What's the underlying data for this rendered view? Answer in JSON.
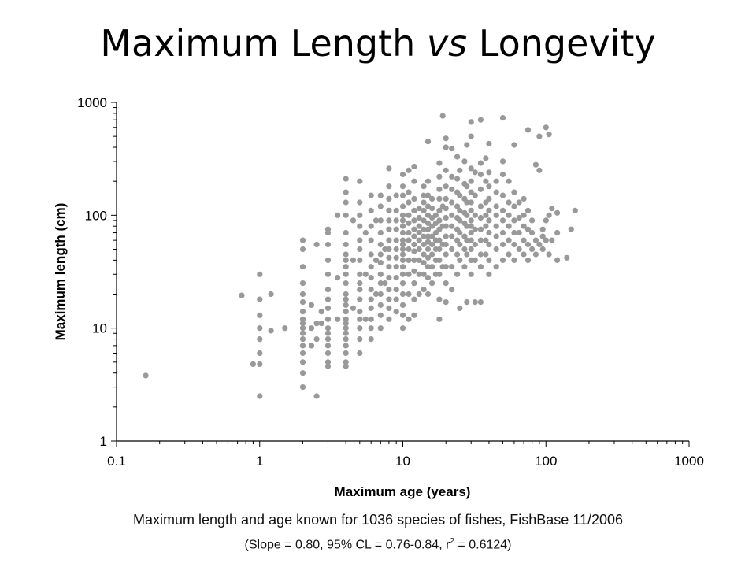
{
  "title": {
    "part1": "Maximum Length ",
    "italic": "vs",
    "part2": " Longevity"
  },
  "caption": {
    "line1": "Maximum length and age known for 1036 species of fishes, FishBase 11/2006",
    "line2_before_sup": "(Slope = 0.80, 95% CL = 0.76-0.84, r",
    "line2_sup": "2",
    "line2_after_sup": " = 0.6124)"
  },
  "chart_data": {
    "type": "scatter",
    "xlabel": "Maximum age (years)",
    "ylabel": "Maximum length (cm)",
    "xscale": "log",
    "yscale": "log",
    "xlim": [
      0.1,
      1000
    ],
    "ylim": [
      1,
      1000
    ],
    "xticks": [
      "0.1",
      "1",
      "10",
      "100",
      "1000"
    ],
    "yticks": [
      "1",
      "10",
      "100",
      "1000"
    ],
    "grid": false,
    "marker_color": "#999999",
    "points": [
      [
        0.16,
        3.8
      ],
      [
        0.75,
        19.5
      ],
      [
        0.9,
        4.8
      ],
      [
        1,
        2.5
      ],
      [
        1,
        4.8
      ],
      [
        1,
        6
      ],
      [
        1,
        8
      ],
      [
        1,
        10
      ],
      [
        1,
        13
      ],
      [
        1,
        18
      ],
      [
        1,
        30
      ],
      [
        1.2,
        9.5
      ],
      [
        1.2,
        20
      ],
      [
        1.5,
        10
      ],
      [
        2,
        3
      ],
      [
        2,
        4
      ],
      [
        2,
        5
      ],
      [
        2,
        6
      ],
      [
        2,
        7
      ],
      [
        2,
        8
      ],
      [
        2,
        9
      ],
      [
        2,
        10
      ],
      [
        2,
        11
      ],
      [
        2,
        12
      ],
      [
        2,
        14
      ],
      [
        2,
        17
      ],
      [
        2,
        20
      ],
      [
        2,
        25
      ],
      [
        2,
        35
      ],
      [
        2,
        50
      ],
      [
        2,
        60
      ],
      [
        2.3,
        7
      ],
      [
        2.3,
        10
      ],
      [
        2.3,
        16
      ],
      [
        2.5,
        2.5
      ],
      [
        2.5,
        55
      ],
      [
        2.5,
        8
      ],
      [
        2.5,
        11
      ],
      [
        2.7,
        11
      ],
      [
        2.7,
        14
      ],
      [
        3,
        4.6
      ],
      [
        3,
        5
      ],
      [
        3,
        6
      ],
      [
        3,
        7
      ],
      [
        3,
        8
      ],
      [
        3,
        9
      ],
      [
        3,
        10
      ],
      [
        3,
        12
      ],
      [
        3,
        15
      ],
      [
        3,
        18
      ],
      [
        3,
        22
      ],
      [
        3,
        30
      ],
      [
        3,
        40
      ],
      [
        3,
        55
      ],
      [
        3,
        70
      ],
      [
        3,
        75
      ],
      [
        3.5,
        12
      ],
      [
        3.5,
        28
      ],
      [
        3.5,
        100
      ],
      [
        4,
        4.6
      ],
      [
        4,
        5
      ],
      [
        4,
        6
      ],
      [
        4,
        7
      ],
      [
        4,
        8
      ],
      [
        4,
        9
      ],
      [
        4,
        10
      ],
      [
        4,
        11
      ],
      [
        4,
        12
      ],
      [
        4,
        14
      ],
      [
        4,
        16
      ],
      [
        4,
        18
      ],
      [
        4,
        20
      ],
      [
        4,
        25
      ],
      [
        4,
        30
      ],
      [
        4,
        35
      ],
      [
        4,
        40
      ],
      [
        4,
        45
      ],
      [
        4,
        55
      ],
      [
        4,
        70
      ],
      [
        4,
        100
      ],
      [
        4,
        130
      ],
      [
        4,
        160
      ],
      [
        4,
        210
      ],
      [
        4.5,
        15
      ],
      [
        4.5,
        40
      ],
      [
        4.5,
        90
      ],
      [
        5,
        6
      ],
      [
        5,
        8
      ],
      [
        5,
        10
      ],
      [
        5,
        12
      ],
      [
        5,
        14
      ],
      [
        5,
        18
      ],
      [
        5,
        22
      ],
      [
        5,
        25
      ],
      [
        5,
        30
      ],
      [
        5,
        40
      ],
      [
        5,
        50
      ],
      [
        5,
        60
      ],
      [
        5,
        80
      ],
      [
        5,
        100
      ],
      [
        5,
        130
      ],
      [
        5,
        200
      ],
      [
        5.5,
        12
      ],
      [
        5.5,
        30
      ],
      [
        5.5,
        70
      ],
      [
        6,
        8
      ],
      [
        6,
        10
      ],
      [
        6,
        12
      ],
      [
        6,
        15
      ],
      [
        6,
        18
      ],
      [
        6,
        22
      ],
      [
        6,
        28
      ],
      [
        6,
        35
      ],
      [
        6,
        45
      ],
      [
        6,
        60
      ],
      [
        6,
        80
      ],
      [
        6,
        110
      ],
      [
        6,
        150
      ],
      [
        6.5,
        20
      ],
      [
        6.5,
        40
      ],
      [
        6.5,
        90
      ],
      [
        7,
        10
      ],
      [
        7,
        13
      ],
      [
        7,
        16
      ],
      [
        7,
        20
      ],
      [
        7,
        25
      ],
      [
        7,
        30
      ],
      [
        7,
        38
      ],
      [
        7,
        45
      ],
      [
        7,
        55
      ],
      [
        7,
        70
      ],
      [
        7,
        90
      ],
      [
        7,
        120
      ],
      [
        7,
        150
      ],
      [
        7.5,
        25
      ],
      [
        7.5,
        50
      ],
      [
        8,
        12
      ],
      [
        8,
        15
      ],
      [
        8,
        18
      ],
      [
        8,
        22
      ],
      [
        8,
        28
      ],
      [
        8,
        35
      ],
      [
        8,
        42
      ],
      [
        8,
        50
      ],
      [
        8,
        60
      ],
      [
        8,
        75
      ],
      [
        8,
        90
      ],
      [
        8,
        110
      ],
      [
        8,
        140
      ],
      [
        8,
        180
      ],
      [
        8,
        260
      ],
      [
        9,
        14
      ],
      [
        9,
        18
      ],
      [
        9,
        22
      ],
      [
        9,
        28
      ],
      [
        9,
        35
      ],
      [
        9,
        42
      ],
      [
        9,
        50
      ],
      [
        9,
        60
      ],
      [
        9,
        75
      ],
      [
        9,
        90
      ],
      [
        9,
        110
      ],
      [
        9,
        150
      ],
      [
        10,
        10
      ],
      [
        10,
        13
      ],
      [
        10,
        16
      ],
      [
        10,
        20
      ],
      [
        10,
        25
      ],
      [
        10,
        30
      ],
      [
        10,
        35
      ],
      [
        10,
        40
      ],
      [
        10,
        45
      ],
      [
        10,
        50
      ],
      [
        10,
        55
      ],
      [
        10,
        60
      ],
      [
        10,
        70
      ],
      [
        10,
        80
      ],
      [
        10,
        90
      ],
      [
        10,
        100
      ],
      [
        10,
        120
      ],
      [
        10,
        150
      ],
      [
        10,
        180
      ],
      [
        10,
        230
      ],
      [
        11,
        12
      ],
      [
        11,
        20
      ],
      [
        11,
        30
      ],
      [
        11,
        40
      ],
      [
        11,
        50
      ],
      [
        11,
        60
      ],
      [
        11,
        70
      ],
      [
        11,
        85
      ],
      [
        11,
        100
      ],
      [
        11,
        130
      ],
      [
        11,
        160
      ],
      [
        11,
        250
      ],
      [
        12,
        13
      ],
      [
        12,
        18
      ],
      [
        12,
        25
      ],
      [
        12,
        32
      ],
      [
        12,
        40
      ],
      [
        12,
        48
      ],
      [
        12,
        55
      ],
      [
        12,
        65
      ],
      [
        12,
        75
      ],
      [
        12,
        90
      ],
      [
        12,
        110
      ],
      [
        12,
        140
      ],
      [
        12,
        200
      ],
      [
        12,
        270
      ],
      [
        13,
        20
      ],
      [
        13,
        30
      ],
      [
        13,
        40
      ],
      [
        13,
        50
      ],
      [
        13,
        60
      ],
      [
        13,
        70
      ],
      [
        13,
        80
      ],
      [
        13,
        95
      ],
      [
        13,
        115
      ],
      [
        14,
        22
      ],
      [
        14,
        30
      ],
      [
        14,
        38
      ],
      [
        14,
        45
      ],
      [
        14,
        55
      ],
      [
        14,
        65
      ],
      [
        14,
        75
      ],
      [
        14,
        90
      ],
      [
        14,
        110
      ],
      [
        14,
        130
      ],
      [
        14,
        150
      ],
      [
        14,
        180
      ],
      [
        15,
        20
      ],
      [
        15,
        28
      ],
      [
        15,
        35
      ],
      [
        15,
        42
      ],
      [
        15,
        50
      ],
      [
        15,
        58
      ],
      [
        15,
        65
      ],
      [
        15,
        75
      ],
      [
        15,
        85
      ],
      [
        15,
        100
      ],
      [
        15,
        120
      ],
      [
        15,
        150
      ],
      [
        15,
        200
      ],
      [
        15,
        450
      ],
      [
        16,
        25
      ],
      [
        16,
        35
      ],
      [
        16,
        45
      ],
      [
        16,
        55
      ],
      [
        16,
        65
      ],
      [
        16,
        80
      ],
      [
        16,
        95
      ],
      [
        16,
        115
      ],
      [
        16,
        140
      ],
      [
        17,
        30
      ],
      [
        17,
        40
      ],
      [
        17,
        50
      ],
      [
        17,
        60
      ],
      [
        17,
        70
      ],
      [
        17,
        85
      ],
      [
        17,
        100
      ],
      [
        18,
        12
      ],
      [
        18,
        18
      ],
      [
        18,
        30
      ],
      [
        18,
        40
      ],
      [
        18,
        50
      ],
      [
        18,
        60
      ],
      [
        18,
        75
      ],
      [
        18,
        90
      ],
      [
        18,
        110
      ],
      [
        18,
        140
      ],
      [
        18,
        170
      ],
      [
        18,
        220
      ],
      [
        18,
        290
      ],
      [
        19,
        760
      ],
      [
        19,
        35
      ],
      [
        19,
        55
      ],
      [
        19,
        80
      ],
      [
        19,
        120
      ],
      [
        20,
        17
      ],
      [
        20,
        25
      ],
      [
        20,
        35
      ],
      [
        20,
        45
      ],
      [
        20,
        55
      ],
      [
        20,
        65
      ],
      [
        20,
        80
      ],
      [
        20,
        95
      ],
      [
        20,
        115
      ],
      [
        20,
        140
      ],
      [
        20,
        180
      ],
      [
        20,
        250
      ],
      [
        20,
        400
      ],
      [
        20,
        480
      ],
      [
        22,
        22
      ],
      [
        22,
        35
      ],
      [
        22,
        50
      ],
      [
        22,
        65
      ],
      [
        22,
        80
      ],
      [
        22,
        100
      ],
      [
        22,
        130
      ],
      [
        22,
        170
      ],
      [
        22,
        220
      ],
      [
        22,
        390
      ],
      [
        24,
        30
      ],
      [
        24,
        45
      ],
      [
        24,
        60
      ],
      [
        24,
        75
      ],
      [
        24,
        95
      ],
      [
        24,
        120
      ],
      [
        24,
        160
      ],
      [
        24,
        210
      ],
      [
        24,
        330
      ],
      [
        25,
        15
      ],
      [
        25,
        40
      ],
      [
        25,
        55
      ],
      [
        25,
        70
      ],
      [
        25,
        90
      ],
      [
        25,
        110
      ],
      [
        25,
        150
      ],
      [
        25,
        250
      ],
      [
        27,
        35
      ],
      [
        27,
        50
      ],
      [
        27,
        65
      ],
      [
        27,
        85
      ],
      [
        27,
        105
      ],
      [
        27,
        140
      ],
      [
        27,
        190
      ],
      [
        27,
        300
      ],
      [
        28,
        17
      ],
      [
        28,
        45
      ],
      [
        28,
        60
      ],
      [
        28,
        80
      ],
      [
        28,
        100
      ],
      [
        28,
        130
      ],
      [
        28,
        180
      ],
      [
        28,
        420
      ],
      [
        30,
        30
      ],
      [
        30,
        40
      ],
      [
        30,
        50
      ],
      [
        30,
        60
      ],
      [
        30,
        70
      ],
      [
        30,
        80
      ],
      [
        30,
        90
      ],
      [
        30,
        110
      ],
      [
        30,
        130
      ],
      [
        30,
        160
      ],
      [
        30,
        200
      ],
      [
        30,
        260
      ],
      [
        30,
        500
      ],
      [
        30,
        670
      ],
      [
        32,
        17
      ],
      [
        32,
        40
      ],
      [
        32,
        55
      ],
      [
        32,
        75
      ],
      [
        32,
        100
      ],
      [
        32,
        150
      ],
      [
        32,
        240
      ],
      [
        35,
        17
      ],
      [
        35,
        35
      ],
      [
        35,
        45
      ],
      [
        35,
        60
      ],
      [
        35,
        75
      ],
      [
        35,
        95
      ],
      [
        35,
        120
      ],
      [
        35,
        170
      ],
      [
        35,
        230
      ],
      [
        35,
        290
      ],
      [
        35,
        700
      ],
      [
        38,
        45
      ],
      [
        38,
        60
      ],
      [
        38,
        80
      ],
      [
        38,
        100
      ],
      [
        38,
        130
      ],
      [
        38,
        200
      ],
      [
        38,
        320
      ],
      [
        40,
        30
      ],
      [
        40,
        40
      ],
      [
        40,
        55
      ],
      [
        40,
        70
      ],
      [
        40,
        90
      ],
      [
        40,
        110
      ],
      [
        40,
        140
      ],
      [
        40,
        180
      ],
      [
        40,
        240
      ],
      [
        40,
        430
      ],
      [
        45,
        35
      ],
      [
        45,
        50
      ],
      [
        45,
        65
      ],
      [
        45,
        80
      ],
      [
        45,
        100
      ],
      [
        45,
        120
      ],
      [
        45,
        160
      ],
      [
        45,
        200
      ],
      [
        50,
        40
      ],
      [
        50,
        55
      ],
      [
        50,
        70
      ],
      [
        50,
        90
      ],
      [
        50,
        110
      ],
      [
        50,
        150
      ],
      [
        50,
        230
      ],
      [
        50,
        300
      ],
      [
        50,
        730
      ],
      [
        55,
        45
      ],
      [
        55,
        60
      ],
      [
        55,
        80
      ],
      [
        55,
        100
      ],
      [
        55,
        130
      ],
      [
        55,
        200
      ],
      [
        60,
        40
      ],
      [
        60,
        55
      ],
      [
        60,
        70
      ],
      [
        60,
        90
      ],
      [
        60,
        120
      ],
      [
        60,
        160
      ],
      [
        60,
        420
      ],
      [
        65,
        50
      ],
      [
        65,
        70
      ],
      [
        65,
        95
      ],
      [
        65,
        130
      ],
      [
        70,
        45
      ],
      [
        70,
        60
      ],
      [
        70,
        80
      ],
      [
        70,
        100
      ],
      [
        70,
        140
      ],
      [
        75,
        40
      ],
      [
        75,
        55
      ],
      [
        75,
        75
      ],
      [
        75,
        110
      ],
      [
        75,
        570
      ],
      [
        80,
        50
      ],
      [
        80,
        70
      ],
      [
        80,
        90
      ],
      [
        85,
        45
      ],
      [
        85,
        60
      ],
      [
        85,
        280
      ],
      [
        90,
        55
      ],
      [
        90,
        250
      ],
      [
        90,
        500
      ],
      [
        95,
        50
      ],
      [
        95,
        65
      ],
      [
        95,
        75
      ],
      [
        100,
        60
      ],
      [
        100,
        90
      ],
      [
        100,
        600
      ],
      [
        105,
        45
      ],
      [
        105,
        100
      ],
      [
        105,
        520
      ],
      [
        110,
        60
      ],
      [
        110,
        115
      ],
      [
        120,
        40
      ],
      [
        120,
        70
      ],
      [
        120,
        105
      ],
      [
        140,
        42
      ],
      [
        150,
        75
      ],
      [
        160,
        110
      ]
    ]
  }
}
